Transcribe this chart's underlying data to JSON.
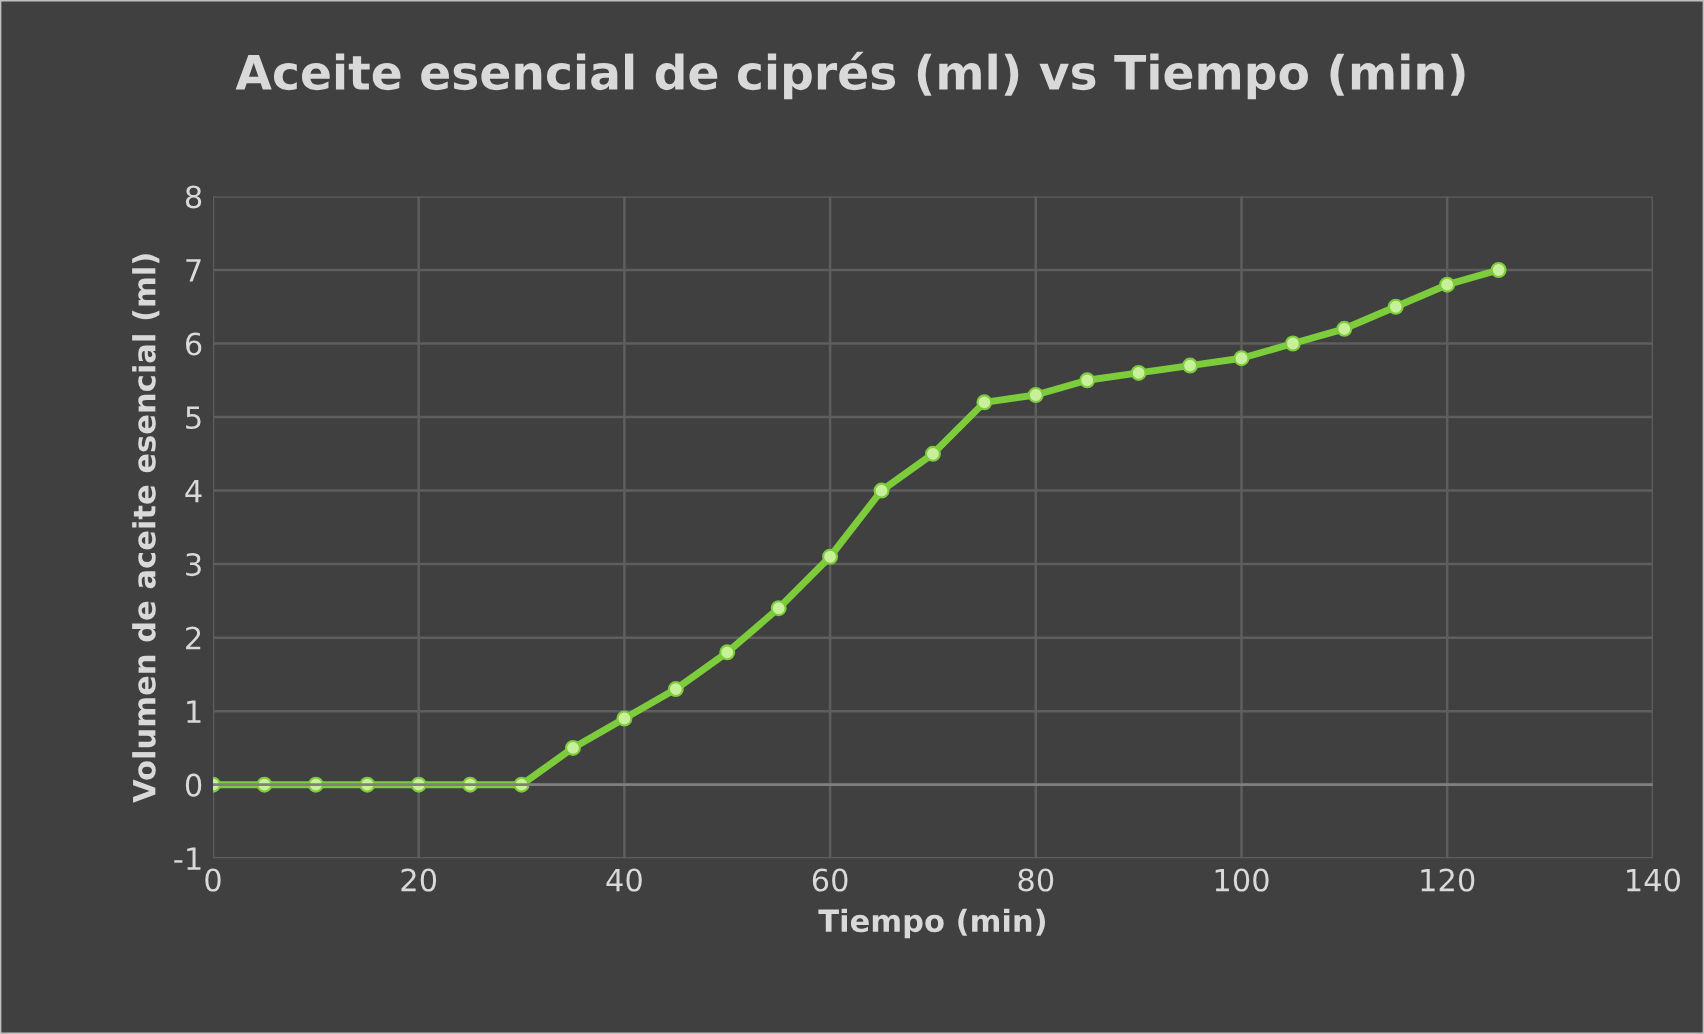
{
  "chart_data": {
    "type": "line",
    "title": "Aceite esencial de ciprés (ml) vs Tiempo (min)",
    "xlabel": "Tiempo (min)",
    "ylabel": "Volumen de aceite esencial (ml)",
    "series": [
      {
        "color": "#7ccc3c",
        "x": [
          0,
          5,
          10,
          15,
          20,
          25,
          30,
          35,
          40,
          45,
          50,
          55,
          60,
          65,
          70,
          75,
          80,
          85,
          90,
          95,
          100,
          105,
          110,
          115,
          120,
          125
        ],
        "values": [
          0,
          0,
          0,
          0,
          0,
          0,
          0,
          0.5,
          0.9,
          1.3,
          1.8,
          2.4,
          3.1,
          4.0,
          4.5,
          5.2,
          5.3,
          5.5,
          5.6,
          5.7,
          5.8,
          6.0,
          6.2,
          6.5,
          6.8,
          7.0
        ]
      }
    ],
    "xlim": [
      0,
      140
    ],
    "xticks": [
      0,
      20,
      40,
      60,
      80,
      100,
      120,
      140
    ],
    "ylim": [
      -1,
      8
    ],
    "yticks": [
      -1,
      0,
      1,
      2,
      3,
      4,
      5,
      6,
      7,
      8
    ],
    "grid": true,
    "marker": "circle",
    "line_style": "solid"
  }
}
